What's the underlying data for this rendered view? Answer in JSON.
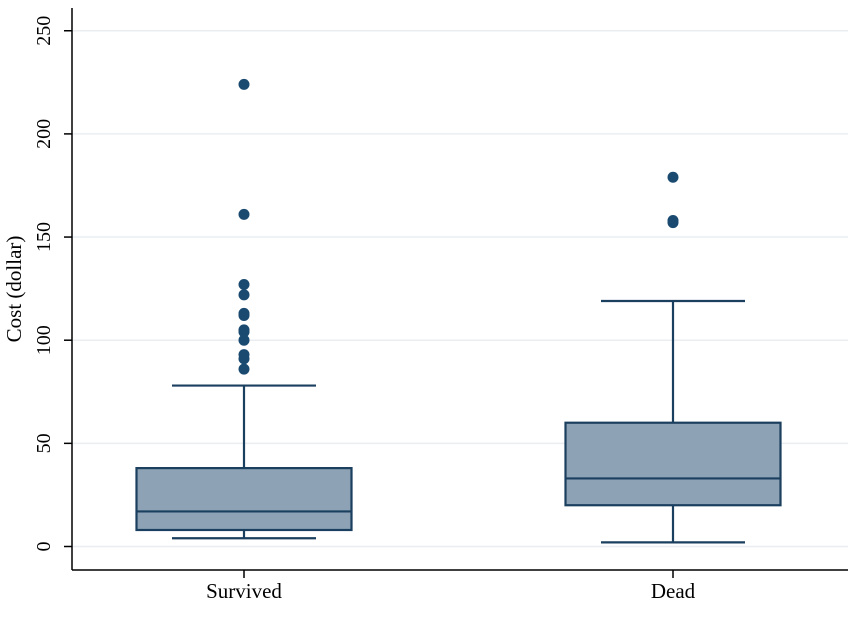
{
  "chart_data": {
    "type": "box",
    "title": "",
    "xlabel": "",
    "ylabel": "Cost (dollar)",
    "ylim": [
      -11,
      261
    ],
    "yticks": [
      0,
      50,
      100,
      150,
      200,
      250
    ],
    "grid": true,
    "categories": [
      "Survived",
      "Dead"
    ],
    "boxes": [
      {
        "category": "Survived",
        "whisker_low": 4,
        "q1": 8,
        "median": 17,
        "q3": 38,
        "whisker_high": 78,
        "outliers": [
          86,
          91,
          93,
          100,
          104,
          105,
          112,
          113,
          122,
          127,
          161,
          224
        ]
      },
      {
        "category": "Dead",
        "whisker_low": 2,
        "q1": 20,
        "median": 33,
        "q3": 60,
        "whisker_high": 119,
        "outliers": [
          157,
          158,
          179
        ]
      }
    ],
    "colors": {
      "box_fill": "#8DA2B5",
      "box_stroke": "#1B3F5E",
      "outlier": "#1A4A70",
      "grid": "#EAEEF1",
      "axis": "#000000"
    }
  }
}
